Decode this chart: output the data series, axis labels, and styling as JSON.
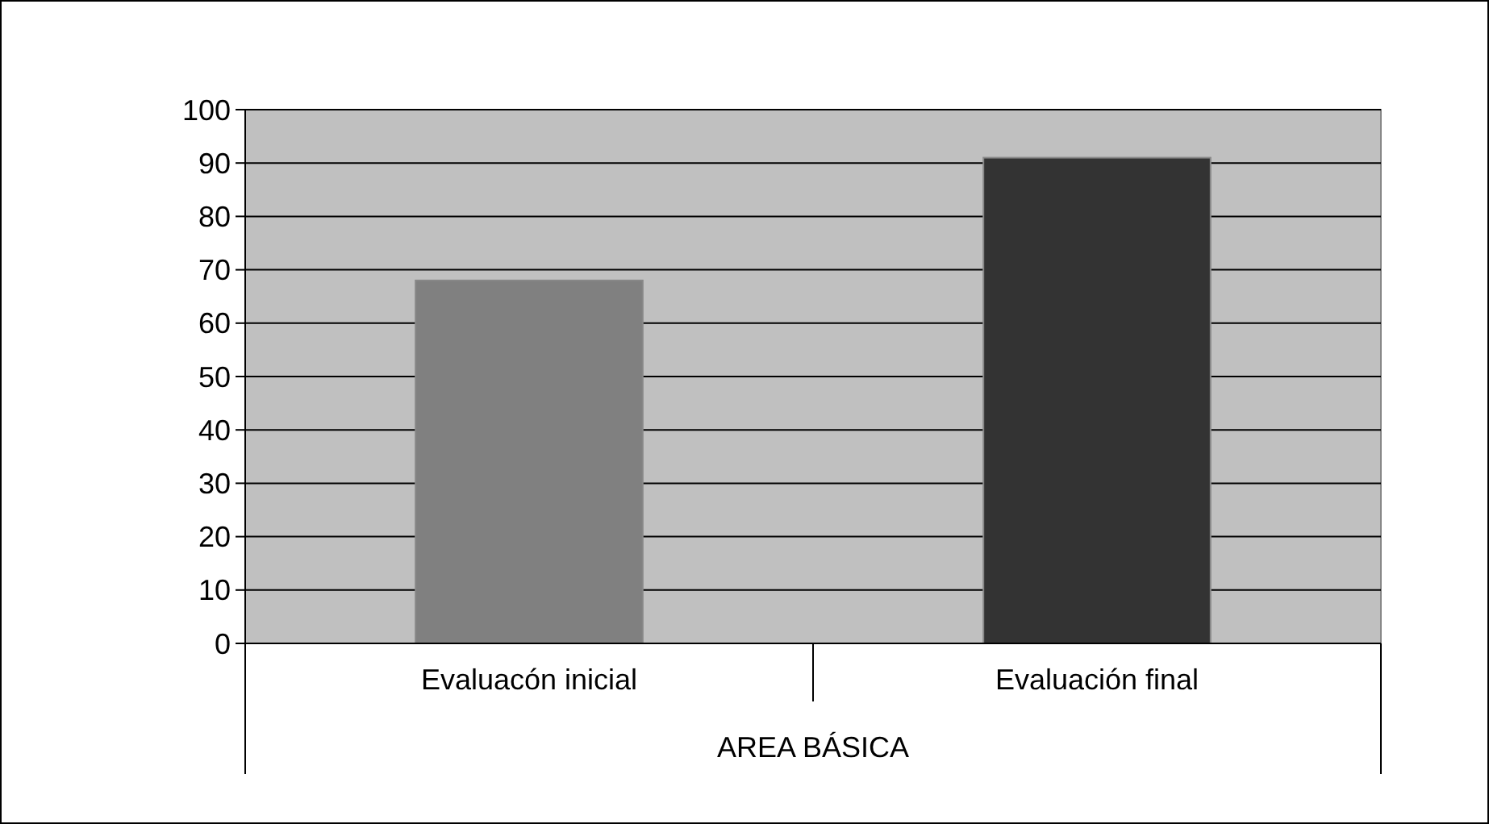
{
  "chart_data": {
    "type": "bar",
    "categories": [
      "Evaluacón inicial",
      "Evaluación final"
    ],
    "values": [
      68,
      91
    ],
    "colors": [
      "#808080",
      "#333333"
    ],
    "xlabel": "AREA BÁSICA",
    "ylim": [
      0,
      100
    ],
    "yticks": [
      0,
      10,
      20,
      30,
      40,
      50,
      60,
      70,
      80,
      90,
      100
    ],
    "grid": "y"
  }
}
